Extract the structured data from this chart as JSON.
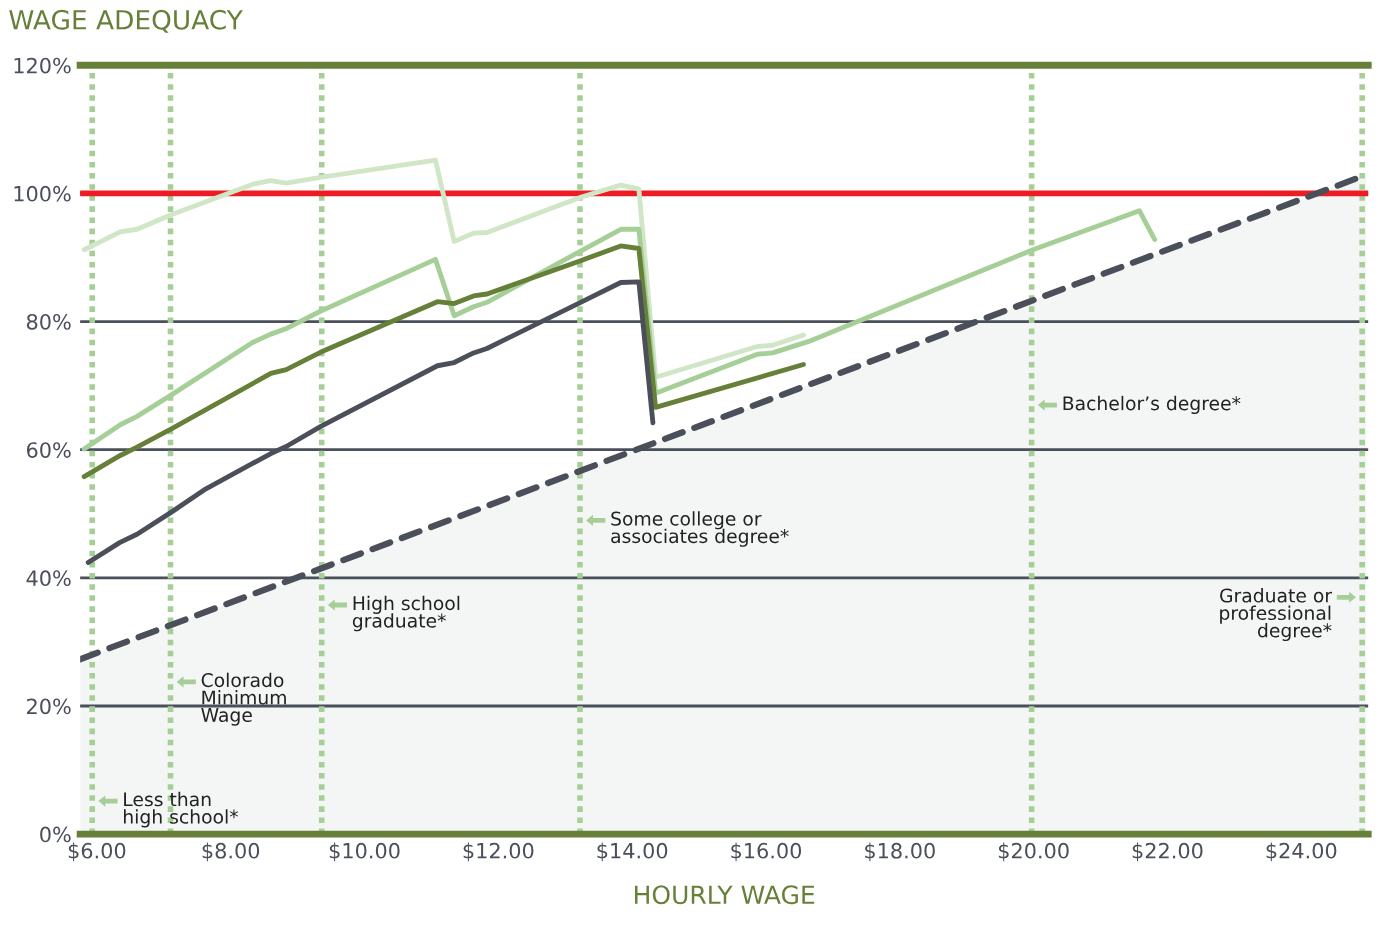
{
  "chart_data": {
    "type": "line",
    "title": "WAGE ADEQUACY",
    "xlabel": "HOURLY WAGE",
    "xlim": [
      5.75,
      25
    ],
    "ylim": [
      0,
      120
    ],
    "xticks": [
      {
        "value": 6,
        "label": "$6.00"
      },
      {
        "value": 8,
        "label": "$8.00"
      },
      {
        "value": 10,
        "label": "$10.00"
      },
      {
        "value": 12,
        "label": "$12.00"
      },
      {
        "value": 14,
        "label": "$14.00"
      },
      {
        "value": 16,
        "label": "$16.00"
      },
      {
        "value": 18,
        "label": "$18.00"
      },
      {
        "value": 20,
        "label": "$20.00"
      },
      {
        "value": 22,
        "label": "$22.00"
      },
      {
        "value": 24,
        "label": "$24.00"
      }
    ],
    "yticks": [
      {
        "value": 0,
        "label": "0%"
      },
      {
        "value": 20,
        "label": "20%"
      },
      {
        "value": 40,
        "label": "40%"
      },
      {
        "value": 60,
        "label": "60%"
      },
      {
        "value": 80,
        "label": "80%"
      },
      {
        "value": 100,
        "label": "100%"
      },
      {
        "value": 120,
        "label": "120%"
      }
    ],
    "grid": "y",
    "legend": false,
    "marker": "none",
    "line_style": "solid",
    "series": [
      {
        "type": "area",
        "line_style": "dashed",
        "color": "#4a4f5a",
        "x": [
          5.75,
          24.97
        ],
        "values": [
          27.3,
          102.9
        ]
      },
      {
        "color": "#d0e6c6",
        "x": [
          5.81,
          6.35,
          6.6,
          7.12,
          8.32,
          8.59,
          8.83,
          9.34,
          11.06,
          11.34,
          11.63,
          11.83,
          13.23,
          13.83,
          14.1,
          14.35,
          15.87,
          16.1,
          16.56
        ],
        "values": [
          91.2,
          94.0,
          94.4,
          96.7,
          101.4,
          102.0,
          101.6,
          102.5,
          105.2,
          92.5,
          93.8,
          93.9,
          99.4,
          101.3,
          100.7,
          71.3,
          76.1,
          76.3,
          77.9
        ]
      },
      {
        "color": "#a6cf98",
        "x": [
          5.81,
          6.35,
          6.6,
          7.12,
          8.32,
          8.59,
          8.83,
          9.34,
          11.06,
          11.34,
          11.63,
          11.83,
          13.23,
          13.83,
          14.1,
          14.35,
          15.87,
          16.1,
          16.64,
          19.99,
          21.58,
          21.81
        ],
        "values": [
          60.1,
          63.9,
          65.2,
          68.6,
          76.7,
          78.0,
          78.9,
          81.6,
          89.7,
          80.9,
          82.3,
          83.0,
          91.0,
          94.4,
          94.4,
          68.8,
          74.9,
          75.1,
          76.9,
          91.2,
          97.3,
          92.8
        ]
      },
      {
        "color": "#66803a",
        "x": [
          5.81,
          6.35,
          6.6,
          7.12,
          8.6,
          8.83,
          9.34,
          11.09,
          11.34,
          11.63,
          11.83,
          13.23,
          13.83,
          14.1,
          14.35,
          16.56
        ],
        "values": [
          55.8,
          59.1,
          60.4,
          63.3,
          71.9,
          72.5,
          75.2,
          83.1,
          82.8,
          84.0,
          84.3,
          89.5,
          91.8,
          91.4,
          66.6,
          73.3
        ]
      },
      {
        "color": "#4a4f5a",
        "x": [
          5.87,
          6.34,
          6.6,
          7.12,
          7.63,
          8.6,
          8.83,
          9.34,
          11.09,
          11.34,
          11.63,
          11.83,
          13.23,
          13.83,
          14.1,
          14.31
        ],
        "values": [
          42.4,
          45.5,
          46.8,
          50.3,
          53.9,
          59.4,
          60.5,
          63.6,
          73.1,
          73.6,
          75.1,
          75.8,
          83.0,
          86.1,
          86.2,
          64.2
        ]
      }
    ],
    "ref_lines": [
      {
        "axis": "y",
        "value": 100,
        "color": "#ed1c24",
        "line_style": "solid"
      },
      {
        "axis": "x",
        "value": 5.93,
        "label": "Less than\nhigh school*",
        "color": "#a6cf98",
        "line_style": "dotted"
      },
      {
        "axis": "x",
        "value": 7.1,
        "label": "Colorado\nMinimum\nWage",
        "color": "#a6cf98",
        "line_style": "dotted"
      },
      {
        "axis": "x",
        "value": 9.36,
        "label": "High school\ngraduate*",
        "color": "#a6cf98",
        "line_style": "dotted"
      },
      {
        "axis": "x",
        "value": 13.22,
        "label": "Some college or\nassociates degree*",
        "color": "#a6cf98",
        "line_style": "dotted"
      },
      {
        "axis": "x",
        "value": 19.97,
        "label": "Bachelor’s degree*",
        "color": "#a6cf98",
        "line_style": "dotted"
      },
      {
        "axis": "x",
        "value": 24.91,
        "label": "Graduate or\nprofessional\ndegree*",
        "color": "#a6cf98",
        "line_style": "dotted"
      }
    ]
  }
}
